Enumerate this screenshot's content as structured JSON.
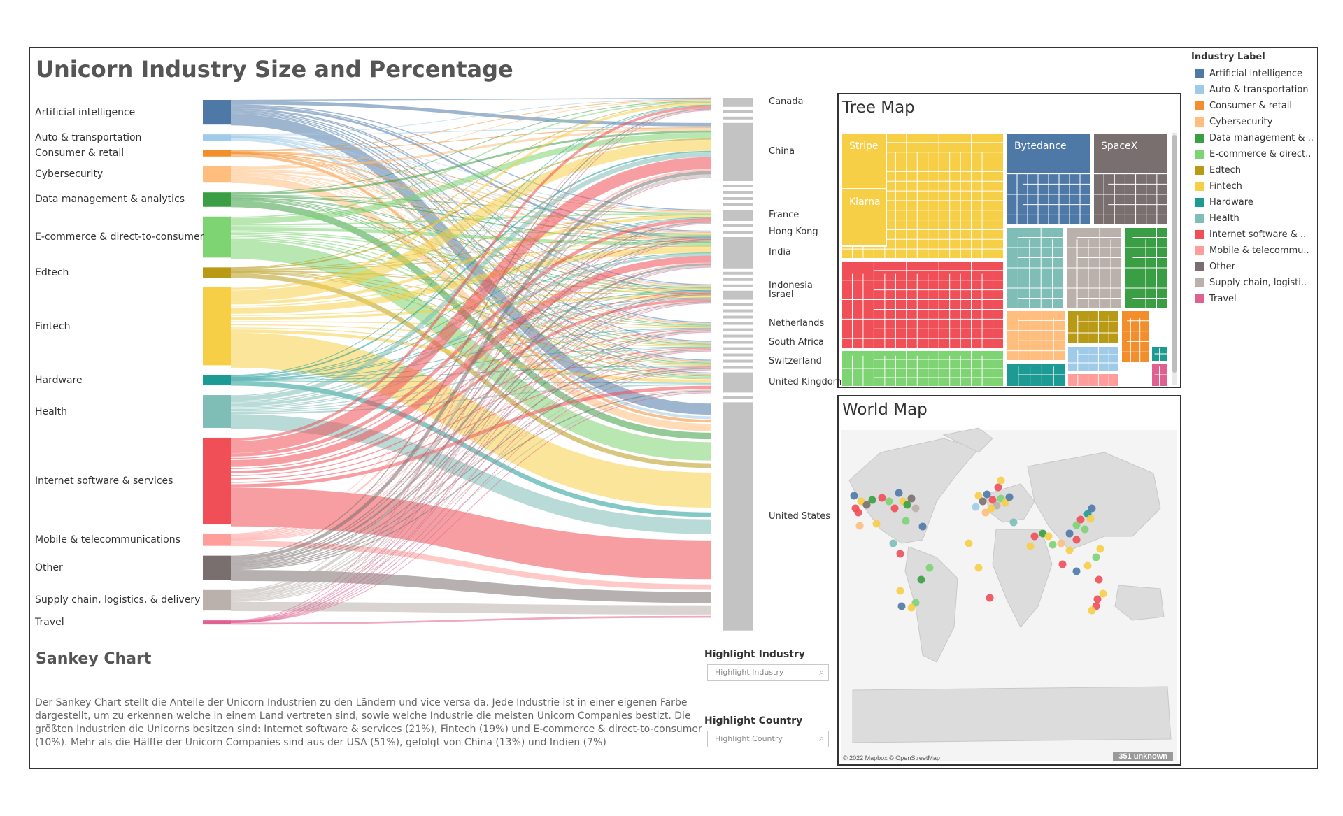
{
  "title": "Unicorn Industry Size and Percentage",
  "industries": [
    {
      "label": "Artificial intelligence",
      "color": "#4e79a7",
      "share": 0.06
    },
    {
      "label": "Auto & transportation",
      "color": "#a0cbe8",
      "share": 0.015
    },
    {
      "label": "Consumer & retail",
      "color": "#f28e2b",
      "share": 0.015
    },
    {
      "label": "Cybersecurity",
      "color": "#ffbe7d",
      "share": 0.04
    },
    {
      "label": "Data management & analytics",
      "color": "#3a9e44",
      "share": 0.035
    },
    {
      "label": "E-commerce & direct-to-consumer",
      "color": "#7ed373",
      "share": 0.1
    },
    {
      "label": "Edtech",
      "color": "#b89a16",
      "share": 0.025
    },
    {
      "label": "Fintech",
      "color": "#f6cf47",
      "share": 0.19
    },
    {
      "label": "Hardware",
      "color": "#1e9a95",
      "share": 0.025
    },
    {
      "label": "Health",
      "color": "#7ebeb7",
      "share": 0.08
    },
    {
      "label": "Internet software & services",
      "color": "#f04f58",
      "share": 0.21
    },
    {
      "label": "Mobile & telecommunications",
      "color": "#ff9d9a",
      "share": 0.03
    },
    {
      "label": "Other",
      "color": "#7a6f6f",
      "share": 0.06
    },
    {
      "label": "Supply chain, logistics, & delivery",
      "color": "#bab0ac",
      "share": 0.05
    },
    {
      "label": "Travel",
      "color": "#e06190",
      "share": 0.01
    }
  ],
  "countries": [
    {
      "label": "Canada",
      "share": 0.02
    },
    {
      "label": "China",
      "share": 0.13
    },
    {
      "label": "France",
      "share": 0.025
    },
    {
      "label": "Hong Kong",
      "share": 0.006
    },
    {
      "label": "India",
      "share": 0.07
    },
    {
      "label": "Indonesia",
      "share": 0.006
    },
    {
      "label": "Israel",
      "share": 0.02
    },
    {
      "label": "Netherlands",
      "share": 0.006
    },
    {
      "label": "South Africa",
      "share": 0.006
    },
    {
      "label": "Switzerland",
      "share": 0.006
    },
    {
      "label": "United Kingdom",
      "share": 0.045
    },
    {
      "label": "United States",
      "share": 0.51
    }
  ],
  "sankey": {
    "title": "Sankey Chart",
    "description": "Der Sankey Chart stellt die Anteile der Unicorn Industrien zu den Ländern und vice versa da. Jede Industrie ist in einer eigenen Farbe dargestellt, um zu erkennen welche in einem Land vertreten sind, sowie welche Industrie die meisten Unicorn Companies bestizt. Die größten Industrien die Unicorns besitzen sind: Internet software & services (21%), Fintech (19%) und E-commerce & direct-to-consumer (10%). Mehr als die Hälfte der Unicorn Companies sind aus der USA (51%), gefolgt von China (13%) und Indien (7%)"
  },
  "highlight_industry": {
    "label": "Highlight Industry",
    "placeholder": "Highlight Industry"
  },
  "highlight_country": {
    "label": "Highlight Country",
    "placeholder": "Highlight Country"
  },
  "treemap": {
    "title": "Tree Map",
    "labels": {
      "stripe": "Stripe",
      "klarna": "Klarna",
      "bytedance": "Bytedance",
      "spacex": "SpaceX"
    }
  },
  "worldmap": {
    "title": "World Map",
    "credit": "© 2022 Mapbox © OpenStreetMap",
    "unknown": "351 unknown"
  },
  "legend": {
    "title": "Industry Label",
    "items": [
      {
        "label": "Artificial intelligence",
        "color": "#4e79a7"
      },
      {
        "label": "Auto & transportation",
        "color": "#a0cbe8"
      },
      {
        "label": "Consumer & retail",
        "color": "#f28e2b"
      },
      {
        "label": "Cybersecurity",
        "color": "#ffbe7d"
      },
      {
        "label": "Data management & ..",
        "color": "#3a9e44"
      },
      {
        "label": "E-commerce & direct..",
        "color": "#7ed373"
      },
      {
        "label": "Edtech",
        "color": "#b89a16"
      },
      {
        "label": "Fintech",
        "color": "#f6cf47"
      },
      {
        "label": "Hardware",
        "color": "#1e9a95"
      },
      {
        "label": "Health",
        "color": "#7ebeb7"
      },
      {
        "label": "Internet software & ..",
        "color": "#f04f58"
      },
      {
        "label": "Mobile & telecommu..",
        "color": "#ff9d9a"
      },
      {
        "label": "Other",
        "color": "#7a6f6f"
      },
      {
        "label": "Supply chain, logisti..",
        "color": "#bab0ac"
      },
      {
        "label": "Travel",
        "color": "#e06190"
      }
    ]
  }
}
